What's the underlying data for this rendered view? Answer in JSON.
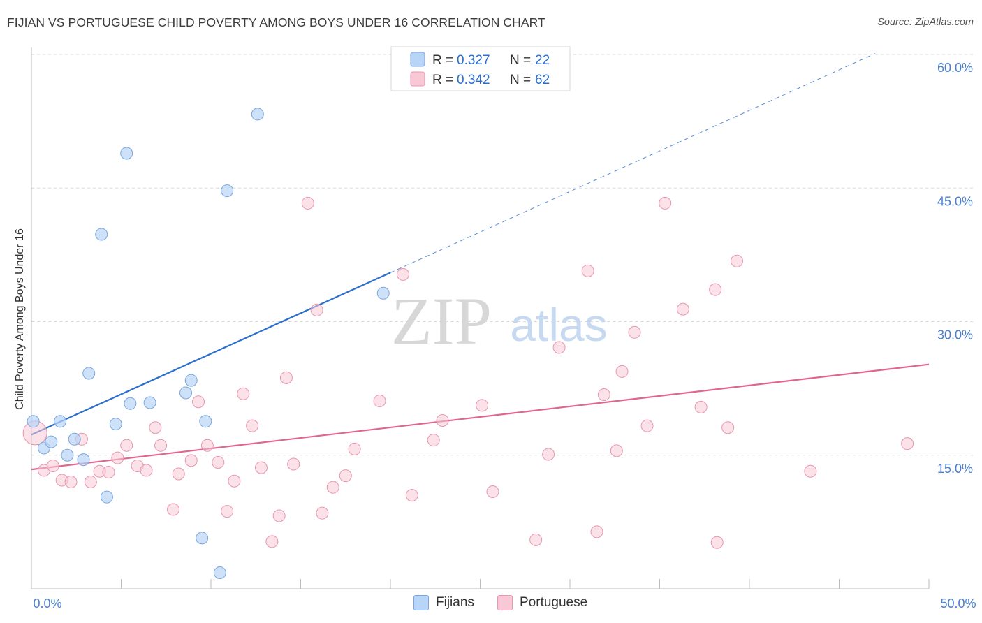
{
  "header": {
    "title": "FIJIAN VS PORTUGUESE CHILD POVERTY AMONG BOYS UNDER 16 CORRELATION CHART",
    "source": "Source: ZipAtlas.com"
  },
  "watermark": {
    "zip": "ZIP",
    "atlas": "atlas"
  },
  "colors": {
    "fijian_fill": "#b8d4f7",
    "fijian_stroke": "#7aa6de",
    "fijian_line": "#2a6fcc",
    "portuguese_fill": "#f8c8d6",
    "portuguese_stroke": "#e896b0",
    "portuguese_line": "#e0668f",
    "tick_label": "#4a7fd0",
    "grid": "#d9d9d9"
  },
  "chart_data": {
    "type": "scatter",
    "title": "FIJIAN VS PORTUGUESE CHILD POVERTY AMONG BOYS UNDER 16 CORRELATION CHART",
    "xlabel": "",
    "ylabel": "Child Poverty Among Boys Under 16",
    "xlim": [
      0,
      50
    ],
    "ylim": [
      0,
      60
    ],
    "x_tick_labels": [
      "0.0%",
      "50.0%"
    ],
    "y_ticks": [
      15,
      30,
      45,
      60
    ],
    "y_tick_labels": [
      "15.0%",
      "30.0%",
      "45.0%",
      "60.0%"
    ],
    "grid": true,
    "legend_position": "top-center",
    "legend": [
      {
        "r_label": "R = ",
        "r_value": "0.327",
        "n_label": "N = ",
        "n_value": "22"
      },
      {
        "r_label": "R = ",
        "r_value": "0.342",
        "n_label": "N = ",
        "n_value": "62"
      }
    ],
    "series": [
      {
        "name": "Fijians",
        "trend": {
          "x0": 0,
          "y0": 17.3,
          "x1": 20,
          "y1": 35.5,
          "dash_x1": 47,
          "dash_y1": 60.1
        },
        "points": [
          [
            0.1,
            18.8
          ],
          [
            0.7,
            15.8
          ],
          [
            1.1,
            16.5
          ],
          [
            1.6,
            18.8
          ],
          [
            2.0,
            15.0
          ],
          [
            2.4,
            16.8
          ],
          [
            2.9,
            14.5
          ],
          [
            3.2,
            24.2
          ],
          [
            3.9,
            39.8
          ],
          [
            4.2,
            10.3
          ],
          [
            4.7,
            18.5
          ],
          [
            5.3,
            48.9
          ],
          [
            5.5,
            20.8
          ],
          [
            6.6,
            20.9
          ],
          [
            8.6,
            22.0
          ],
          [
            8.9,
            23.4
          ],
          [
            9.5,
            5.7
          ],
          [
            9.7,
            18.8
          ],
          [
            10.5,
            1.8
          ],
          [
            10.9,
            44.7
          ],
          [
            12.6,
            53.3
          ],
          [
            19.6,
            33.2
          ]
        ]
      },
      {
        "name": "Portuguese",
        "trend": {
          "x0": 0,
          "y0": 13.4,
          "x1": 50,
          "y1": 25.2
        },
        "points": [
          [
            0.2,
            17.5
          ],
          [
            0.7,
            13.3
          ],
          [
            1.2,
            13.8
          ],
          [
            1.7,
            12.2
          ],
          [
            2.2,
            12.0
          ],
          [
            2.8,
            16.8
          ],
          [
            3.3,
            12.0
          ],
          [
            3.8,
            13.2
          ],
          [
            4.3,
            13.1
          ],
          [
            4.8,
            14.7
          ],
          [
            5.3,
            16.1
          ],
          [
            5.9,
            13.8
          ],
          [
            6.4,
            13.3
          ],
          [
            6.9,
            18.1
          ],
          [
            7.2,
            16.1
          ],
          [
            7.9,
            8.9
          ],
          [
            8.2,
            12.9
          ],
          [
            8.9,
            14.4
          ],
          [
            9.3,
            21.0
          ],
          [
            9.8,
            16.1
          ],
          [
            10.4,
            14.2
          ],
          [
            10.9,
            8.7
          ],
          [
            11.3,
            12.1
          ],
          [
            11.8,
            21.9
          ],
          [
            12.3,
            18.3
          ],
          [
            12.8,
            13.6
          ],
          [
            13.4,
            5.3
          ],
          [
            13.8,
            8.2
          ],
          [
            14.2,
            23.7
          ],
          [
            14.6,
            14.0
          ],
          [
            15.4,
            43.3
          ],
          [
            15.9,
            31.3
          ],
          [
            16.2,
            8.5
          ],
          [
            16.8,
            11.4
          ],
          [
            17.5,
            12.7
          ],
          [
            18.0,
            15.7
          ],
          [
            19.4,
            21.1
          ],
          [
            20.7,
            35.3
          ],
          [
            21.2,
            10.5
          ],
          [
            22.4,
            16.7
          ],
          [
            22.9,
            18.9
          ],
          [
            25.1,
            20.6
          ],
          [
            25.7,
            10.9
          ],
          [
            28.1,
            5.5
          ],
          [
            28.8,
            15.1
          ],
          [
            29.4,
            27.1
          ],
          [
            31.0,
            35.7
          ],
          [
            31.5,
            6.4
          ],
          [
            31.9,
            21.8
          ],
          [
            32.6,
            15.5
          ],
          [
            32.9,
            24.4
          ],
          [
            33.6,
            28.8
          ],
          [
            34.3,
            18.3
          ],
          [
            35.3,
            43.3
          ],
          [
            36.3,
            31.4
          ],
          [
            37.3,
            20.4
          ],
          [
            38.1,
            33.6
          ],
          [
            38.2,
            5.2
          ],
          [
            38.8,
            18.1
          ],
          [
            39.3,
            36.8
          ],
          [
            43.4,
            13.2
          ],
          [
            48.8,
            16.3
          ]
        ]
      }
    ]
  }
}
